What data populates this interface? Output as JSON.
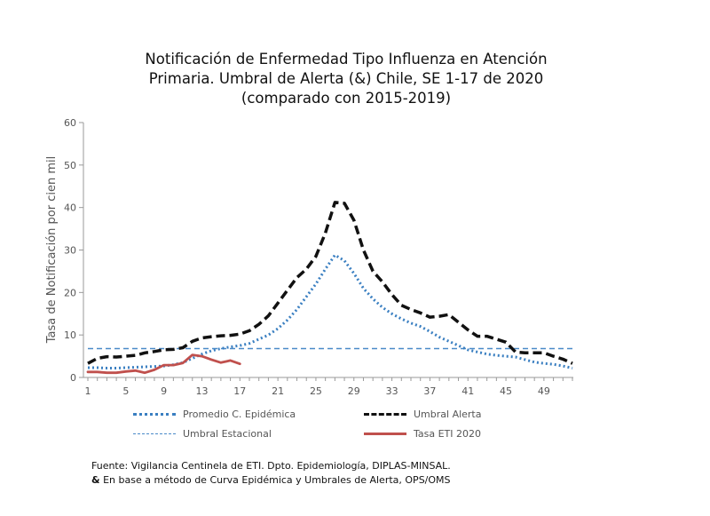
{
  "chart_data": {
    "type": "line",
    "title_lines": [
      "Notificación de Enfermedad Tipo Influenza en Atención",
      "Primaria. Umbral de Alerta (&) Chile, SE 1-17 de 2020",
      "(comparado con 2015-2019)"
    ],
    "ylabel": "Tasa de Notificación por cien mil",
    "xlabel": "",
    "xlim": [
      1,
      52
    ],
    "ylim": [
      0,
      60
    ],
    "x_ticks": [
      1,
      5,
      9,
      13,
      17,
      21,
      25,
      29,
      33,
      37,
      41,
      45,
      49
    ],
    "y_ticks": [
      0,
      10,
      20,
      30,
      40,
      50,
      60
    ],
    "grid": false,
    "legend_position": "bottom",
    "series": [
      {
        "name": "Promedio  C. Epidémica",
        "style": "dotted",
        "color": "#3a7fc1",
        "x": [
          1,
          2,
          3,
          4,
          5,
          6,
          7,
          8,
          9,
          10,
          11,
          12,
          13,
          14,
          15,
          16,
          17,
          18,
          19,
          20,
          21,
          22,
          23,
          24,
          25,
          26,
          27,
          28,
          29,
          30,
          31,
          32,
          33,
          34,
          35,
          36,
          37,
          38,
          39,
          40,
          41,
          42,
          43,
          44,
          45,
          46,
          47,
          48,
          49,
          50,
          51,
          52
        ],
        "values": [
          2.3,
          2.3,
          2.2,
          2.2,
          2.3,
          2.4,
          2.5,
          2.6,
          2.7,
          3.0,
          3.5,
          4.5,
          5.5,
          6.3,
          6.8,
          7.2,
          7.5,
          8.0,
          9.0,
          10.0,
          11.5,
          13.5,
          16.0,
          19.0,
          22.0,
          25.5,
          28.8,
          27.5,
          24.5,
          21.0,
          18.5,
          16.5,
          15.0,
          13.8,
          12.8,
          12.0,
          10.8,
          9.5,
          8.5,
          7.5,
          6.5,
          6.0,
          5.5,
          5.2,
          5.0,
          4.8,
          4.2,
          3.6,
          3.3,
          3.1,
          2.7,
          2.2
        ]
      },
      {
        "name": "Umbral Alerta",
        "style": "dashed",
        "color": "#111111",
        "x": [
          1,
          2,
          3,
          4,
          5,
          6,
          7,
          8,
          9,
          10,
          11,
          12,
          13,
          14,
          15,
          16,
          17,
          18,
          19,
          20,
          21,
          22,
          23,
          24,
          25,
          26,
          27,
          28,
          29,
          30,
          31,
          32,
          33,
          34,
          35,
          36,
          37,
          38,
          39,
          40,
          41,
          42,
          43,
          44,
          45,
          46,
          47,
          48,
          49,
          50,
          51,
          52
        ],
        "values": [
          3.3,
          4.5,
          4.9,
          4.8,
          5.0,
          5.2,
          5.8,
          6.1,
          6.5,
          6.6,
          7.0,
          8.5,
          9.3,
          9.6,
          9.8,
          9.9,
          10.2,
          11.0,
          12.5,
          14.5,
          17.5,
          20.5,
          23.5,
          25.5,
          28.5,
          34.0,
          41.2,
          41.0,
          37.0,
          30.0,
          25.0,
          22.5,
          19.5,
          17.0,
          16.0,
          15.2,
          14.2,
          14.4,
          14.8,
          13.0,
          11.2,
          9.7,
          9.7,
          9.0,
          8.3,
          6.0,
          5.8,
          5.8,
          5.8,
          5.0,
          4.3,
          3.3
        ]
      },
      {
        "name": "Umbral Estacional",
        "style": "dashed-thin",
        "color": "#4a8ac8",
        "x": [
          1,
          52
        ],
        "values": [
          6.8,
          6.8
        ]
      },
      {
        "name": "Tasa ETI  2020",
        "style": "solid",
        "color": "#c0504d",
        "x": [
          1,
          2,
          3,
          4,
          5,
          6,
          7,
          8,
          9,
          10,
          11,
          12,
          13,
          14,
          15,
          16,
          17
        ],
        "values": [
          1.3,
          1.3,
          1.1,
          1.1,
          1.4,
          1.6,
          1.1,
          1.8,
          2.9,
          2.9,
          3.4,
          5.3,
          5.0,
          4.2,
          3.5,
          4.0,
          3.2
        ]
      }
    ]
  },
  "legend": {
    "promedio": "Promedio  C. Epidémica",
    "umbral_alerta": "Umbral Alerta",
    "umbral_estacional": "Umbral Estacional",
    "tasa_eti": "Tasa ETI  2020"
  },
  "source": {
    "line1": "Fuente: Vigilancia Centinela de ETI. Dpto. Epidemiología, DIPLAS-MINSAL.",
    "line2_symbol": "&",
    "line2_text": " En base a método de Curva Epidémica y Umbrales de Alerta, OPS/OMS"
  }
}
